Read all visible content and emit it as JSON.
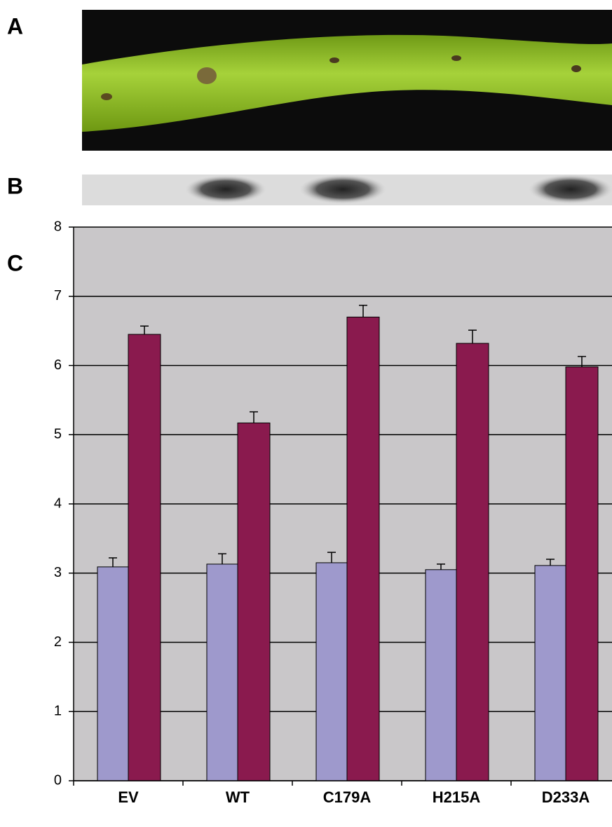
{
  "panel_labels": [
    "A",
    "B",
    "C"
  ],
  "chart_data": {
    "type": "bar",
    "categories": [
      "EV",
      "WT",
      "C179A",
      "H215A",
      "D233A"
    ],
    "series": [
      {
        "color": "#9e99cc",
        "values": [
          3.09,
          3.13,
          3.15,
          3.05,
          3.11
        ],
        "errors": [
          0.13,
          0.15,
          0.15,
          0.08,
          0.09
        ]
      },
      {
        "color": "#8a1a4e",
        "values": [
          6.45,
          5.17,
          6.7,
          6.32,
          5.98
        ],
        "errors": [
          0.12,
          0.16,
          0.17,
          0.19,
          0.15
        ]
      }
    ],
    "ylim": [
      0,
      8
    ],
    "yticks": [
      0,
      1,
      2,
      3,
      4,
      5,
      6,
      7,
      8
    ],
    "grid": true
  }
}
